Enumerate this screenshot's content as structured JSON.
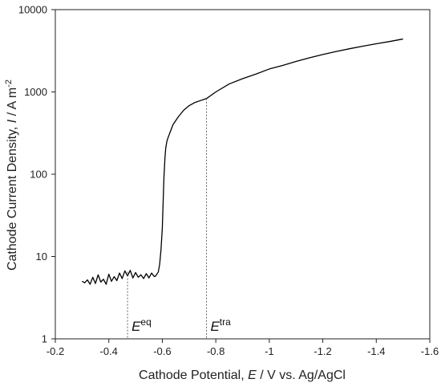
{
  "chart_data": {
    "type": "line",
    "title": "",
    "xlabel": {
      "prefix": "Cathode Potential, ",
      "symbol": "E",
      "suffix": " / V vs. Ag/AgCl"
    },
    "ylabel": {
      "prefix": "Cathode Current Density, ",
      "symbol": "I",
      "mid": "  /  A m",
      "unit_sup": "-2"
    },
    "xlim": [
      -0.2,
      -1.6
    ],
    "ylim": [
      1,
      10000
    ],
    "yscale": "log",
    "grid": false,
    "legend": "none",
    "x_ticks": [
      "-0.2",
      "-0.4",
      "-0.6",
      "-0.8",
      "-1",
      "-1.2",
      "-1.4",
      "-1.6"
    ],
    "y_ticks": [
      "1",
      "10",
      "100",
      "1000",
      "10000"
    ],
    "annotations": [
      {
        "symbol": "E",
        "sup": "eq",
        "x": -0.47,
        "y_top": 6.5
      },
      {
        "symbol": "E",
        "sup": "tra",
        "x": -0.765,
        "y_top": 830
      }
    ],
    "series": [
      {
        "color": "#000000",
        "x": [
          -0.3,
          -0.31,
          -0.32,
          -0.33,
          -0.34,
          -0.35,
          -0.36,
          -0.37,
          -0.38,
          -0.39,
          -0.4,
          -0.41,
          -0.42,
          -0.43,
          -0.44,
          -0.45,
          -0.46,
          -0.47,
          -0.48,
          -0.49,
          -0.5,
          -0.51,
          -0.52,
          -0.53,
          -0.54,
          -0.55,
          -0.56,
          -0.57,
          -0.575,
          -0.585,
          -0.59,
          -0.595,
          -0.6,
          -0.603,
          -0.606,
          -0.61,
          -0.613,
          -0.617,
          -0.62,
          -0.63,
          -0.64,
          -0.66,
          -0.68,
          -0.7,
          -0.72,
          -0.74,
          -0.765,
          -0.8,
          -0.85,
          -0.9,
          -0.95,
          -1.0,
          -1.05,
          -1.1,
          -1.15,
          -1.2,
          -1.25,
          -1.3,
          -1.35,
          -1.4,
          -1.45,
          -1.5
        ],
        "y": [
          5.0,
          4.8,
          5.2,
          4.6,
          5.6,
          4.7,
          6.0,
          4.9,
          5.3,
          4.6,
          6.1,
          5.0,
          5.7,
          5.1,
          6.3,
          5.4,
          6.7,
          5.8,
          6.8,
          5.5,
          6.4,
          5.6,
          6.0,
          5.4,
          6.2,
          5.5,
          6.3,
          5.7,
          5.8,
          6.5,
          8.0,
          12,
          22,
          45,
          90,
          160,
          210,
          250,
          270,
          330,
          400,
          500,
          600,
          680,
          740,
          780,
          830,
          1000,
          1250,
          1450,
          1650,
          1900,
          2100,
          2350,
          2600,
          2850,
          3100,
          3350,
          3600,
          3850,
          4100,
          4400
        ]
      }
    ]
  }
}
